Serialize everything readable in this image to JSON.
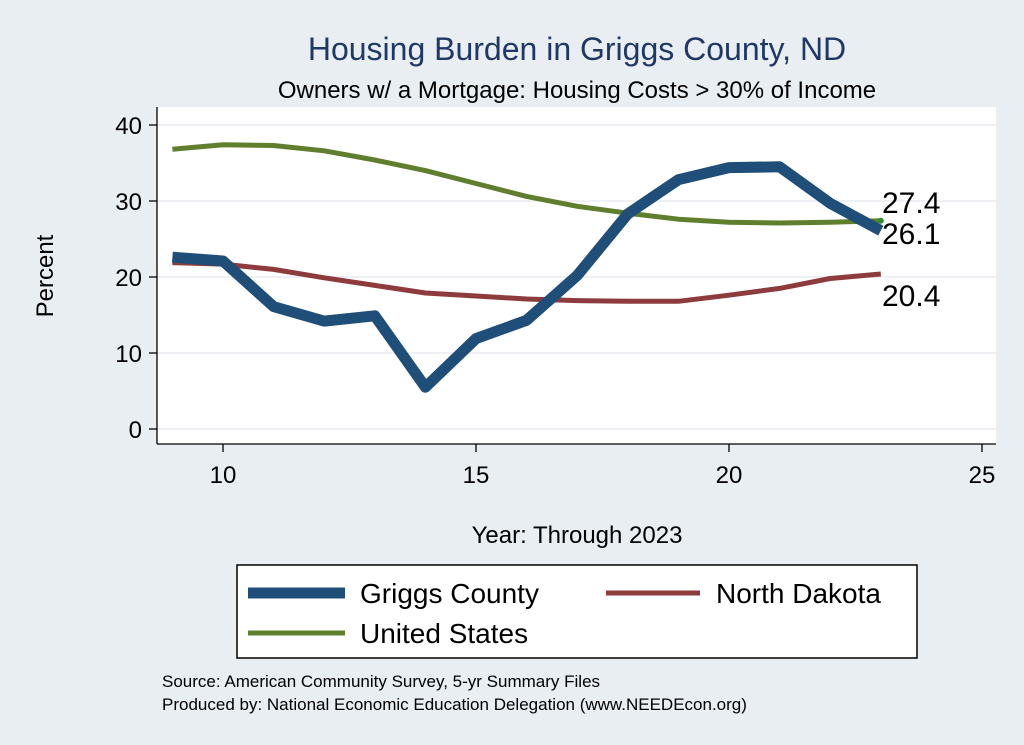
{
  "chart_data": {
    "type": "line",
    "title": "Housing Burden in Griggs County, ND",
    "subtitle": "Owners w/ a Mortgage: Housing Costs > 30% of Income",
    "xlabel": "Year: Through 2023",
    "ylabel": "Percent",
    "xlim": [
      9,
      25
    ],
    "ylim": [
      0,
      40
    ],
    "x_ticks": [
      10,
      15,
      20,
      25
    ],
    "y_ticks": [
      0,
      10,
      20,
      30,
      40
    ],
    "grid": true,
    "legend_position": "bottom",
    "x": [
      9,
      10,
      11,
      12,
      13,
      14,
      15,
      16,
      17,
      18,
      19,
      20,
      21,
      22,
      23
    ],
    "series": [
      {
        "name": "Griggs County",
        "color": "#1f4e79",
        "values": [
          22.6,
          22.1,
          16.1,
          14.2,
          14.9,
          5.5,
          11.9,
          14.3,
          20.2,
          28.3,
          32.8,
          34.4,
          34.5,
          29.7,
          26.1
        ],
        "end_label": "26.1"
      },
      {
        "name": "North Dakota",
        "color": "#8e3b3d",
        "values": [
          21.9,
          21.7,
          21.0,
          19.9,
          18.9,
          17.9,
          17.5,
          17.1,
          16.9,
          16.8,
          16.8,
          17.6,
          18.5,
          19.8,
          20.4
        ],
        "end_label": "20.4"
      },
      {
        "name": "United States",
        "color": "#5f7f2f",
        "values": [
          36.8,
          37.4,
          37.3,
          36.6,
          35.4,
          34.0,
          32.3,
          30.6,
          29.3,
          28.4,
          27.6,
          27.2,
          27.1,
          27.2,
          27.4
        ],
        "end_label": "27.4"
      }
    ]
  },
  "source_lines": [
    "Source: American Community Survey, 5-yr Summary Files",
    "Produced by: National Economic Education Delegation (www.NEEDEcon.org)"
  ]
}
